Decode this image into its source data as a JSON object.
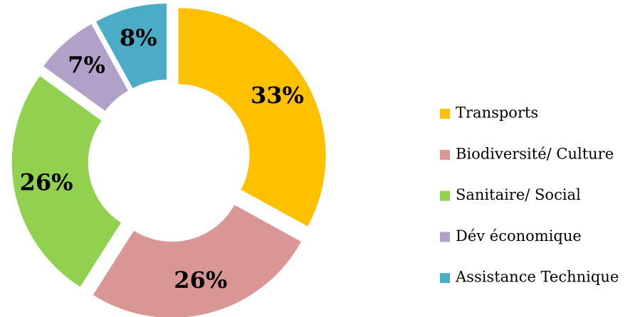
{
  "chart_data": {
    "type": "donut",
    "categories": [
      "Transports",
      "Biodiversité/ Culture",
      "Sanitaire/ Social",
      "Dév économique",
      "Assistance Technique"
    ],
    "values": [
      33,
      26,
      26,
      7,
      8
    ],
    "value_labels": [
      "33%",
      "26%",
      "26%",
      "7%",
      "8%"
    ],
    "colors": [
      "#FFC000",
      "#DA9694",
      "#92D050",
      "#B1A0C7",
      "#4BACC6"
    ],
    "legend": "right"
  }
}
